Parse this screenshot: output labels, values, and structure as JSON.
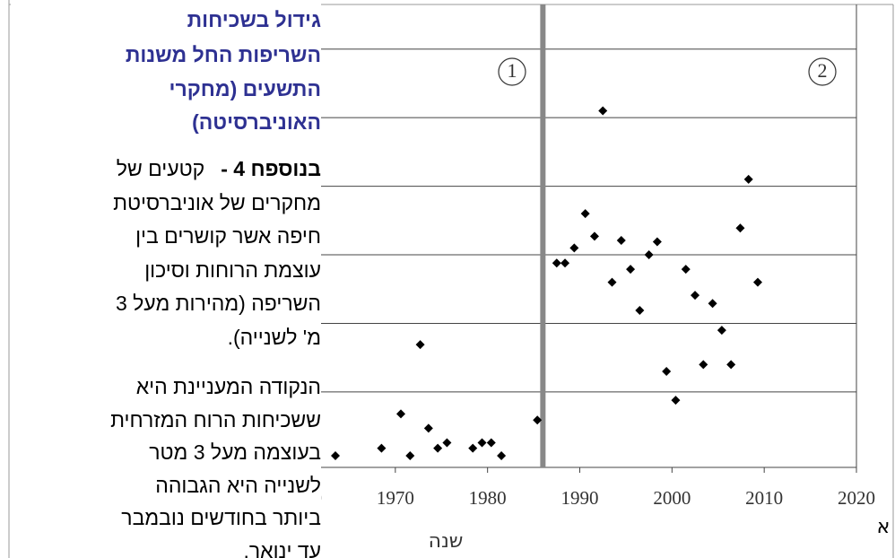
{
  "chart_data": {
    "type": "scatter",
    "x_label": "שנה",
    "x_label_cut": "א",
    "x": [
      1963.5,
      1968.5,
      1970.6,
      1971.6,
      1972.7,
      1973.6,
      1974.6,
      1975.6,
      1978.4,
      1979.4,
      1980.4,
      1981.5,
      1985.4,
      1987.5,
      1988.4,
      1989.4,
      1990.6,
      1991.6,
      1992.5,
      1993.5,
      1994.5,
      1995.5,
      1996.5,
      1997.5,
      1998.4,
      1999.4,
      2000.4,
      2001.5,
      2002.5,
      2003.4,
      2004.4,
      2005.4,
      2006.4,
      2007.4,
      2008.3,
      2009.3
    ],
    "y": [
      0.07,
      0.18,
      0.68,
      0.07,
      1.69,
      0.47,
      0.18,
      0.26,
      0.18,
      0.26,
      0.26,
      0.07,
      0.59,
      2.88,
      2.88,
      3.1,
      3.6,
      3.27,
      5.1,
      2.6,
      3.21,
      2.79,
      2.19,
      3.0,
      3.19,
      1.3,
      0.88,
      2.79,
      2.41,
      1.4,
      2.29,
      1.9,
      1.4,
      3.39,
      4.1,
      2.6
    ],
    "color": "#000000",
    "xlim": [
      1960,
      2020
    ],
    "xticks": [
      1960,
      1970,
      1980,
      1990,
      2000,
      2010,
      2020
    ],
    "ylim": [
      -0.1,
      6.65
    ],
    "yticks": [
      1,
      2,
      3,
      4,
      5,
      6
    ],
    "grid": true,
    "divider_x": 1986,
    "divider_color": "#888888",
    "period_labels": [
      "1",
      "2"
    ]
  },
  "text_panel": {
    "title_lines": [
      "גידול בשכיחות",
      "השריפות החל משנות",
      "התשעים (מחקרי",
      "האוניברסיטה)"
    ],
    "paragraphs": [
      {
        "lead": "בנוספח 4 -",
        "lines": [
          "קטעים של",
          "מחקרים של אוניברסיטת",
          "חיפה אשר קושרים בין",
          "עוצמת הרוחות וסיכון",
          "השריפה (מהירות מעל 3",
          "מ' לשנייה)."
        ]
      },
      {
        "lines": [
          "הנקודה המעניינת היא",
          "ששכיחות הרוח המזרחית",
          "בעוצמה מעל 3 מטר",
          "לשנייה היא הגבוהה",
          "ביותר בחודשים נובמבר",
          "עד ינואר."
        ]
      }
    ]
  }
}
